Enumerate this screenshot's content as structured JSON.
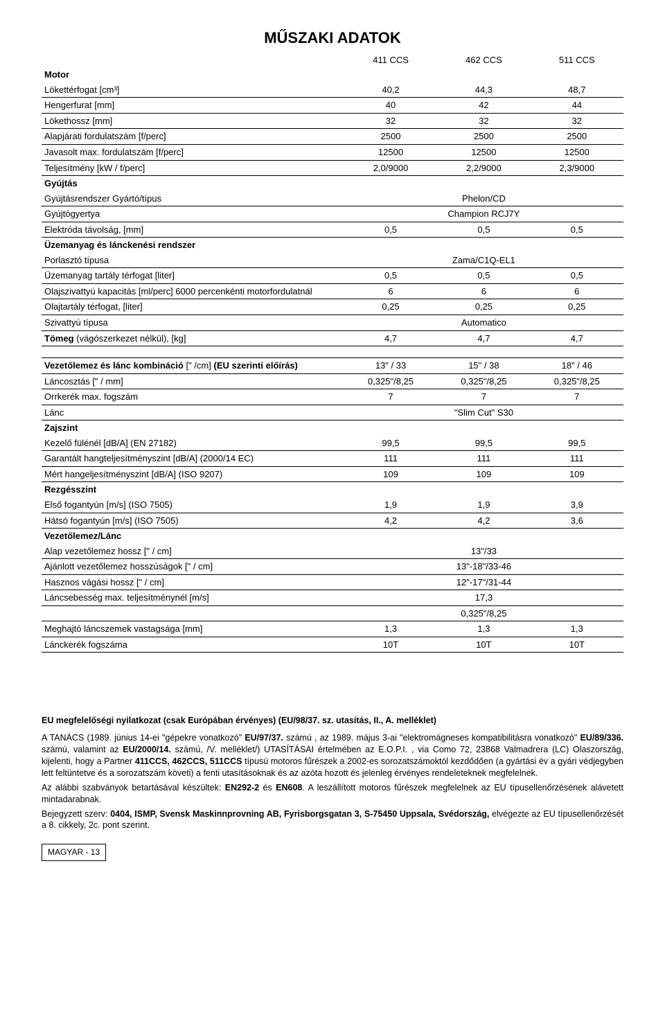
{
  "page_title": "MŰSZAKI ADATOK",
  "col_headers": [
    "411 CCS",
    "462 CCS",
    "511 CCS"
  ],
  "sections": {
    "motor": {
      "title": "Motor",
      "rows": [
        {
          "label": "Lökettérfogat [cm³]",
          "v": [
            "40,2",
            "44,3",
            "48,7"
          ]
        },
        {
          "label": "Hengerfurat [mm]",
          "v": [
            "40",
            "42",
            "44"
          ]
        },
        {
          "label": "Lökethossz [mm]",
          "v": [
            "32",
            "32",
            "32"
          ]
        },
        {
          "label": "Alapjárati fordulatszám [f/perc]",
          "v": [
            "2500",
            "2500",
            "2500"
          ]
        },
        {
          "label": "Javasolt max. fordulatszám [f/perc]",
          "v": [
            "12500",
            "12500",
            "12500"
          ]
        },
        {
          "label": "Teljesítmény [kW / f/perc]",
          "v": [
            "2,0/9000",
            "2,2/9000",
            "2,3/9000"
          ]
        }
      ]
    },
    "gyujtas": {
      "title": "Gyújtás",
      "rows_merged": [
        {
          "label": "Gyújtásrendszer Gyártó/típus",
          "value": "Phelon/CD"
        },
        {
          "label": "Gyújtógyertya",
          "value": "Champion RCJ7Y"
        }
      ],
      "rows": [
        {
          "label": "Elektróda távolság, [mm]",
          "v": [
            "0,5",
            "0,5",
            "0,5"
          ]
        }
      ]
    },
    "uzemanyag": {
      "title": "Üzemanyag és lánckenési rendszer",
      "rows_merged_first": [
        {
          "label": "Porlasztó típusa",
          "value": "Zama/C1Q-EL1"
        }
      ],
      "rows": [
        {
          "label": "Üzemanyag tartály térfogat [liter]",
          "v": [
            "0,5",
            "0,5",
            "0,5"
          ]
        },
        {
          "label": "Olajszivattyú kapacitás [ml/perc] 6000 percenkénti motorfordulatnál",
          "v": [
            "6",
            "6",
            "6"
          ]
        },
        {
          "label": "Olajtartály térfogat, [liter]",
          "v": [
            "0,25",
            "0,25",
            "0,25"
          ]
        }
      ],
      "rows_merged_last": [
        {
          "label": "Szivattyú típusa",
          "value": "Automatico"
        }
      ],
      "tomeg": {
        "label_html": "<b>Tömeg</b> (vágószerkezet nélkül), [kg]",
        "v": [
          "4,7",
          "4,7",
          "4,7"
        ]
      }
    },
    "vezeto": {
      "rows": [
        {
          "label_html": "<b>Vezetőlemez és lánc kombináció</b> [\" /cm] <b>(EU szerinti előírás)</b>",
          "v": [
            "13\" / 33",
            "15\" / 38",
            "18\" / 46"
          ]
        },
        {
          "label": "Láncosztás [\" / mm]",
          "v": [
            "0,325\"/8,25",
            "0,325\"/8,25",
            "0,325\"/8,25"
          ]
        },
        {
          "label": "Orrkerék max. fogszám",
          "v": [
            "7",
            "7",
            "7"
          ]
        }
      ],
      "rows_merged": [
        {
          "label": "Lánc",
          "value": "\"Slim Cut\" S30"
        }
      ]
    },
    "zajszint": {
      "title": "Zajszint",
      "rows": [
        {
          "label": "Kezelő fülénél [dB/A] (EN 27182)",
          "v": [
            "99,5",
            "99,5",
            "99,5"
          ]
        },
        {
          "label": "Garantált hangteljesítményszint [dB/A] (2000/14 EC)",
          "v": [
            "111",
            "111",
            "111"
          ]
        },
        {
          "label": "Mért hangeljesítményszint [dB/A] (ISO 9207)",
          "v": [
            "109",
            "109",
            "109"
          ]
        }
      ]
    },
    "rezges": {
      "title": "Rezgésszint",
      "rows": [
        {
          "label": "Első fogantyún [m/s] (ISO 7505)",
          "v": [
            "1,9",
            "1,9",
            "3,9"
          ]
        },
        {
          "label": "Hátsó fogantyún [m/s] (ISO 7505)",
          "v": [
            "4,2",
            "4,2",
            "3,6"
          ]
        }
      ]
    },
    "vezetolemez_lanc": {
      "title": "Vezetőlemez/Lánc",
      "rows_merged": [
        {
          "label": "Alap vezetőlemez hossz [\" / cm]",
          "value": "13\"/33"
        },
        {
          "label": "Ajánlott vezetőlemez hosszúságok  [\" / cm]",
          "value": "13\"-18\"/33-46"
        },
        {
          "label": "Hasznos vágási hossz [\" / cm]",
          "value": "12\"-17\"/31-44"
        },
        {
          "label": "Láncsebesség max. teljesítménynél [m/s]",
          "value": "17,3"
        },
        {
          "label": "",
          "value": "0,325\"/8,25"
        }
      ],
      "rows": [
        {
          "label": "Meghajtó láncszemek vastagsága [mm]",
          "v": [
            "1,3",
            "1,3",
            "1,3"
          ]
        },
        {
          "label": "Lánckerék fogszáma",
          "v": [
            "10T",
            "10T",
            "10T"
          ]
        }
      ]
    }
  },
  "declaration": {
    "title": "EU megfelelőségi nyilatkozat (csak Európában érvényes) (EU/98/37. sz. utasítás, II., A. melléklet)",
    "body_html": "A TANÁCS (1989. június 14-ei \"gépekre vonatkozó\" <b>EU/97/37.</b> számú ,  az 1989. május 3-ai \"elektromágneses kompatibilitásra vonatkozó\" <b>EU/89/336.</b> számú, valamint az <b>EU/2000/14.</b> számú, /V. melléklet/) UTASÍTÁSAI értelmében az E.O.P.I. , via Como 72, 23868 Valmadrera (LC) Olaszország, kijelenti, hogy a Partner <b>411CCS, 462CCS, 511CCS</b> típusú motoros fűrészek a 2002-es sorozatszámoktól kezdődően (a gyártási év a gyári védjegyben lett feltüntetve és a sorozatszám követi) a fenti utasításoknak és az azóta hozott és  jelenleg érvényes rendeleteknek megfelelnek.",
    "line2_html": "Az alábbi szabványok betartásával készültek: <b>EN292-2</b> és <b>EN608</b>. A leszállított motoros fűrészek megfelelnek az EU típusellenőrzésének alávetett mintadarabnak.",
    "line3_html": "Bejegyzett szerv: <b>0404, ISMP, Svensk Maskinnprovning AB, Fyrisborgsgatan 3, S-75450 Uppsala, Svédország,</b> elvégezte az EU típusellenőrzését a 8. cikkely, 2c. pont szerint."
  },
  "page_label": "MAGYAR - 13"
}
